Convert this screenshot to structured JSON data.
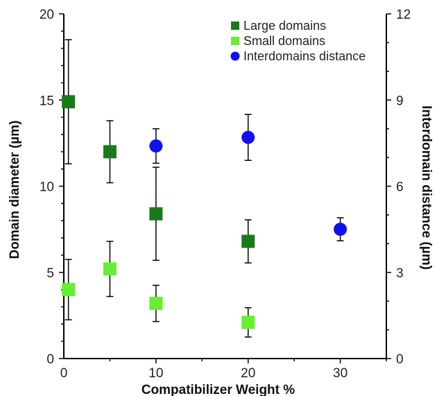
{
  "chart_data": {
    "type": "scatter",
    "xlabel": "Compatibilizer Weight %",
    "ylabel_left": "Domain diameter (µm)",
    "ylabel_right": "Interdomain distance (µm)",
    "xlim": [
      0,
      35
    ],
    "ylim_left": [
      0,
      20
    ],
    "ylim_right": [
      0,
      12
    ],
    "x_ticks": [
      "0",
      "10",
      "20",
      "30"
    ],
    "y_left_ticks": [
      "0",
      "5",
      "10",
      "15",
      "20"
    ],
    "y_right_ticks": [
      "0",
      "3",
      "6",
      "9",
      "12"
    ],
    "grid": false,
    "legend_position": "top-right",
    "colors": {
      "large": "#1a7a1a",
      "small": "#66ee33",
      "inter": "#1010ee"
    },
    "series": [
      {
        "name": "Large domains",
        "axis": "left",
        "marker": "square",
        "color_key": "large",
        "points": [
          {
            "x": 0.5,
            "y": 14.9,
            "err": 3.6
          },
          {
            "x": 5,
            "y": 12.0,
            "err": 1.8
          },
          {
            "x": 10,
            "y": 8.4,
            "err": 2.7
          },
          {
            "x": 20,
            "y": 6.8,
            "err": 1.25
          }
        ]
      },
      {
        "name": "Small domains",
        "axis": "left",
        "marker": "square",
        "color_key": "small",
        "points": [
          {
            "x": 0.5,
            "y": 4.0,
            "err": 1.75
          },
          {
            "x": 5,
            "y": 5.2,
            "err": 1.6
          },
          {
            "x": 10,
            "y": 3.2,
            "err": 1.05
          },
          {
            "x": 20,
            "y": 2.1,
            "err": 0.85
          }
        ]
      },
      {
        "name": "Interdomains distance",
        "axis": "right",
        "marker": "circle",
        "color_key": "inter",
        "points": [
          {
            "x": 10,
            "y": 7.4,
            "err": 0.6
          },
          {
            "x": 20,
            "y": 7.7,
            "err": 0.8
          },
          {
            "x": 30,
            "y": 4.5,
            "err": 0.4
          }
        ]
      }
    ]
  }
}
